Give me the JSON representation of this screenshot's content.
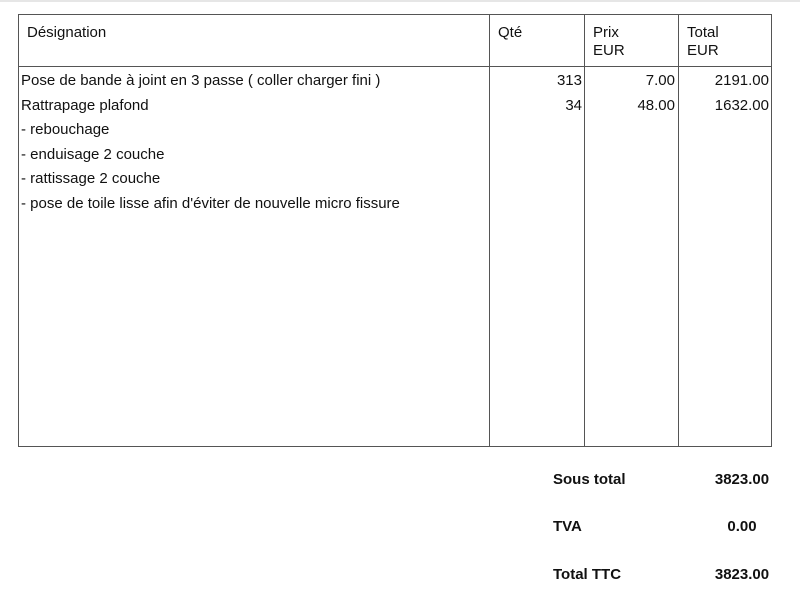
{
  "table": {
    "headers": {
      "designation": "Désignation",
      "qte": "Qté",
      "prix_line1": "Prix",
      "prix_line2": "EUR",
      "total_line1": "Total",
      "total_line2": "EUR"
    },
    "rows": [
      {
        "designation": "Pose de bande à joint en 3 passe ( coller charger fini )",
        "qte": "313",
        "prix": "7.00",
        "total": "2191.00"
      },
      {
        "designation": "Rattrapage plafond",
        "qte": "34",
        "prix": "48.00",
        "total": "1632.00"
      },
      {
        "designation": "- rebouchage",
        "qte": "",
        "prix": "",
        "total": ""
      },
      {
        "designation": "- enduisage 2 couche",
        "qte": "",
        "prix": "",
        "total": ""
      },
      {
        "designation": "- rattissage 2 couche",
        "qte": "",
        "prix": "",
        "total": ""
      },
      {
        "designation": "- pose de toile lisse afin d'éviter de nouvelle micro fissure",
        "qte": "",
        "prix": "",
        "total": ""
      }
    ]
  },
  "totals": {
    "sous_total_label": "Sous total",
    "sous_total_value": "3823.00",
    "tva_label": "TVA",
    "tva_value": "0.00",
    "ttc_label": "Total TTC",
    "ttc_value": "3823.00"
  }
}
